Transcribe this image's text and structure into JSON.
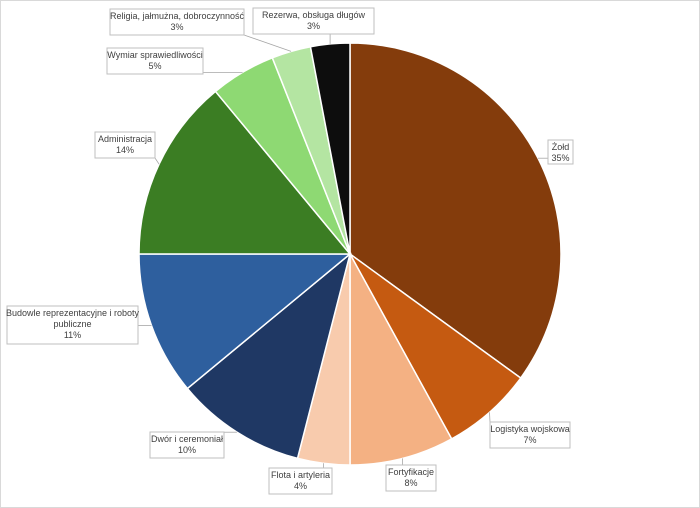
{
  "chart_data": {
    "type": "pie",
    "title": "",
    "legend": "none",
    "start_angle_deg": 0,
    "direction": "clockwise",
    "slices": [
      {
        "label": "Żołd",
        "value": 35,
        "value_label": "35%",
        "color": "#843C0C"
      },
      {
        "label": "Logistyka wojskowa",
        "value": 7,
        "value_label": "7%",
        "color": "#C55A11"
      },
      {
        "label": "Fortyfikacje",
        "value": 8,
        "value_label": "8%",
        "color": "#F4B183"
      },
      {
        "label": "Flota i artyleria",
        "value": 4,
        "value_label": "4%",
        "color": "#F8CBAD"
      },
      {
        "label": "Dwór i ceremoniał",
        "value": 10,
        "value_label": "10%",
        "color": "#1F3864"
      },
      {
        "label": "Budowle reprezentacyjne i roboty publiczne",
        "value": 11,
        "value_label": "11%",
        "color": "#2E5F9E"
      },
      {
        "label": "Administracja",
        "value": 14,
        "value_label": "14%",
        "color": "#3B7D23"
      },
      {
        "label": "Wymiar sprawiedliwości",
        "value": 5,
        "value_label": "5%",
        "color": "#8ED973"
      },
      {
        "label": "Religia, jałmużna, dobroczynność",
        "value": 3,
        "value_label": "3%",
        "color": "#B4E5A2"
      },
      {
        "label": "Rezerwa, obsługa długów",
        "value": 3,
        "value_label": "3%",
        "color": "#0D0D0D"
      }
    ]
  }
}
